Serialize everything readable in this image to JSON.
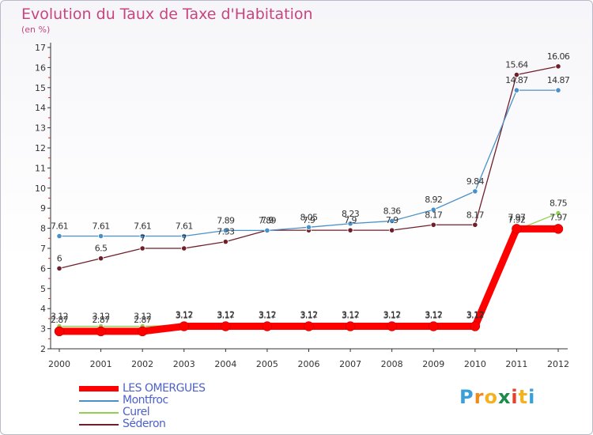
{
  "title": "Evolution du Taux de Taxe d'Habitation",
  "subtitle": "(en %)",
  "logo": {
    "text": "Proxiti",
    "letters": [
      "P",
      "r",
      "o",
      "x",
      "i",
      "t",
      "i"
    ],
    "colors": [
      "#3aa0d8",
      "#f08a1c",
      "#f4b223",
      "#1f8a4d",
      "#e5412d",
      "#f4b223",
      "#3aa0d8"
    ]
  },
  "chart_data": {
    "type": "line",
    "x": [
      "2000",
      "2001",
      "2002",
      "2003",
      "2004",
      "2005",
      "2006",
      "2007",
      "2008",
      "2009",
      "2010",
      "2011",
      "2012"
    ],
    "ylim": [
      2,
      17
    ],
    "yticks": [
      2,
      3,
      4,
      5,
      6,
      7,
      8,
      9,
      10,
      11,
      12,
      13,
      14,
      15,
      16,
      17
    ],
    "grid": false,
    "legend_placement": "bottom-left",
    "series": [
      {
        "name": "LES OMERGUES",
        "color": "#ff0000",
        "values": [
          2.87,
          2.87,
          2.87,
          3.12,
          3.12,
          3.12,
          3.12,
          3.12,
          3.12,
          3.12,
          3.12,
          7.97,
          7.97
        ],
        "labels": [
          "2.87",
          "2.87",
          "2.87",
          "3.12",
          "3.12",
          "3.12",
          "3.12",
          "3.12",
          "3.12",
          "3.12",
          "3.12",
          "7.97",
          "7.97"
        ]
      },
      {
        "name": "Montfroc",
        "color": "#4a90c8",
        "values": [
          7.61,
          7.61,
          7.61,
          7.61,
          7.89,
          7.89,
          8.05,
          8.23,
          8.36,
          8.92,
          9.84,
          14.87,
          14.87
        ],
        "labels": [
          "7.61",
          "7.61",
          "7.61",
          "7.61",
          "7.89",
          "7.89",
          "8.05",
          "8.23",
          "8.36",
          "8.92",
          "9.84",
          "14.87",
          "14.87"
        ]
      },
      {
        "name": "Curel",
        "color": "#8fd14f",
        "values": [
          3.12,
          3.12,
          3.12,
          3.17,
          3.17,
          3.17,
          3.17,
          3.17,
          3.17,
          3.17,
          3.17,
          7.92,
          8.75
        ],
        "labels": [
          "3.12",
          "3.12",
          "3.12",
          "3.17",
          "3.17",
          "3.17",
          "3.17",
          "3.17",
          "3.17",
          "3.17",
          "3.17",
          "7.92",
          "8.75"
        ]
      },
      {
        "name": "Séderon",
        "color": "#6e1f2a",
        "values": [
          6,
          6.5,
          7,
          7,
          7.33,
          7.9,
          7.9,
          7.9,
          7.9,
          8.17,
          8.17,
          15.64,
          16.06
        ],
        "labels": [
          "6",
          "6.5",
          "7",
          "7",
          "7.33",
          "7.9",
          "7.9",
          "7.9",
          "7.9",
          "8.17",
          "8.17",
          "15.64",
          "16.06"
        ]
      }
    ]
  }
}
